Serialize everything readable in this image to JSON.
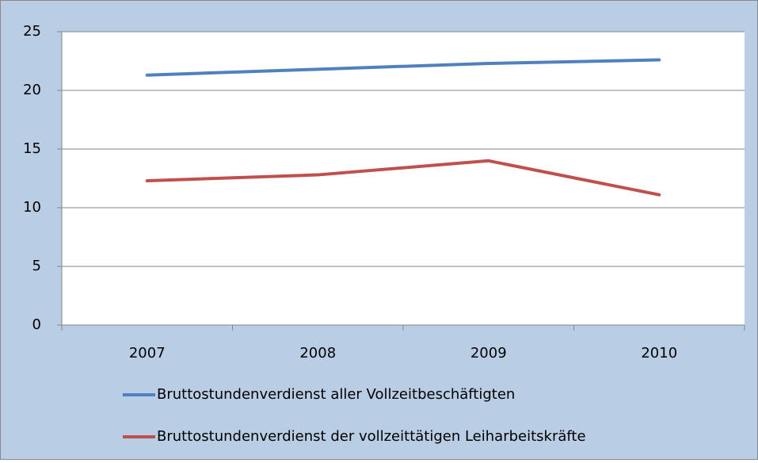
{
  "chart_data": {
    "type": "line",
    "categories": [
      "2007",
      "2008",
      "2009",
      "2010"
    ],
    "series": [
      {
        "name": "Bruttostundenverdienst aller Vollzeitbeschäftigten",
        "color": "#4f81bd",
        "values": [
          21.3,
          21.8,
          22.3,
          22.6
        ]
      },
      {
        "name": "Bruttostundenverdienst der vollzeittätigen Leiharbeitskräfte",
        "color": "#c0504d",
        "values": [
          12.3,
          12.8,
          14.0,
          11.1
        ]
      }
    ],
    "ylim": [
      0,
      25
    ],
    "yticks": [
      0,
      5,
      10,
      15,
      20,
      25
    ],
    "grid": true,
    "legend": "bottom"
  }
}
